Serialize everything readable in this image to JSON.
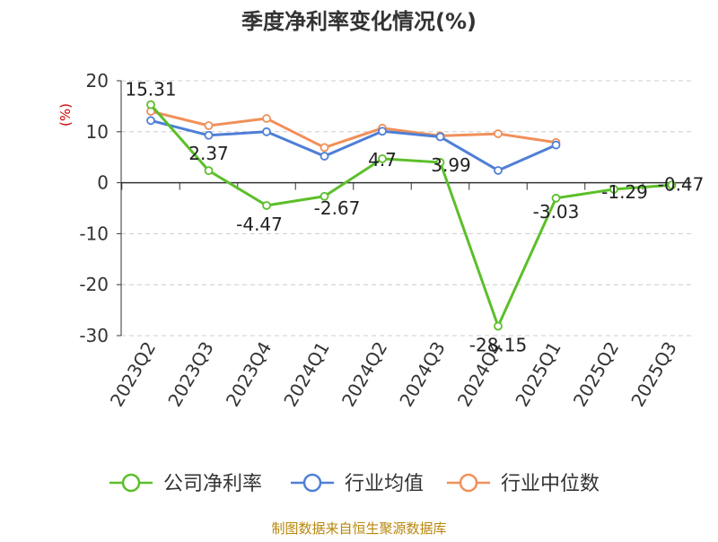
{
  "chart_data": {
    "type": "line",
    "title": "季度净利率变化情况(%)",
    "ylabel": "(%)",
    "categories": [
      "2023Q2",
      "2023Q3",
      "2023Q4",
      "2024Q1",
      "2024Q2",
      "2024Q3",
      "2024Q4",
      "2025Q1",
      "2025Q2",
      "2025Q3"
    ],
    "ylim": [
      -30,
      20
    ],
    "yticks": [
      20,
      10,
      0,
      -10,
      -20,
      -30
    ],
    "grid": true,
    "legend_position": "bottom",
    "series": [
      {
        "name": "公司净利率",
        "color": "#5cbf2a",
        "values": [
          15.31,
          2.37,
          -4.47,
          -2.67,
          4.7,
          3.99,
          -28.15,
          -3.03,
          -1.29,
          -0.47
        ],
        "labels": [
          "15.31",
          "2.37",
          "-4.47",
          "-2.67",
          "4.7",
          "3.99",
          "-28.15",
          "-3.03",
          "-1.29",
          "-0.47"
        ]
      },
      {
        "name": "行业均值",
        "color": "#4f7fd6",
        "values": [
          12.2,
          9.3,
          10.0,
          5.2,
          10.1,
          9.0,
          2.4,
          7.4,
          null,
          null
        ]
      },
      {
        "name": "行业中位数",
        "color": "#f0905a",
        "values": [
          14.0,
          11.2,
          12.6,
          6.9,
          10.7,
          9.2,
          9.6,
          7.9,
          null,
          null
        ]
      }
    ]
  },
  "footer": {
    "source": "制图数据来自恒生聚源数据库"
  },
  "colors": {
    "title": "#333333",
    "ylabel": "#cc0000",
    "axis": "#333333",
    "grid": "#cccccc",
    "source": "#b8860b"
  }
}
